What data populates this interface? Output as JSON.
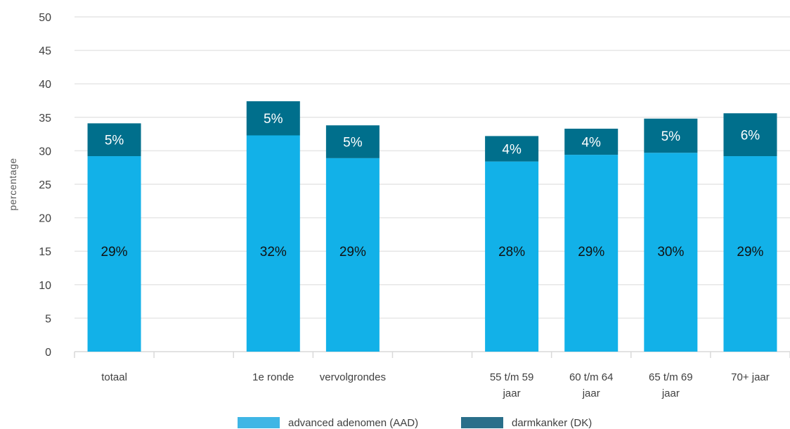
{
  "colors": {
    "aad": "#12B1E8",
    "dk": "#006F8C",
    "aad_legend": "#3FB6E5",
    "dk_legend": "#2A6F8A",
    "grid": "#E6E6E6",
    "axis": "#D9D9D9"
  },
  "chart_data": {
    "type": "bar",
    "stacked": true,
    "ylabel": "percentage",
    "ylim": [
      0,
      50
    ],
    "yticks": [
      "0",
      "5",
      "10",
      "15",
      "20",
      "25",
      "30",
      "35",
      "40",
      "45",
      "50"
    ],
    "grid": true,
    "legend_position": "bottom",
    "categories": [
      [
        "totaal"
      ],
      [],
      [
        "1e ronde"
      ],
      [
        "vervolgrondes"
      ],
      [],
      [
        "55 t/m 59",
        "jaar"
      ],
      [
        "60 t/m 64",
        "jaar"
      ],
      [
        "65 t/m 69",
        "jaar"
      ],
      [
        "70+ jaar"
      ]
    ],
    "series": [
      {
        "name": "advanced adenomen (AAD)",
        "values": [
          29.2,
          null,
          32.3,
          28.9,
          null,
          28.4,
          29.4,
          29.7,
          29.2
        ],
        "labels": [
          "29%",
          "",
          "32%",
          "29%",
          "",
          "28%",
          "29%",
          "30%",
          "29%"
        ]
      },
      {
        "name": "darmkanker (DK)",
        "values": [
          4.9,
          null,
          5.1,
          4.9,
          null,
          3.8,
          3.9,
          5.1,
          6.4
        ],
        "labels": [
          "5%",
          "",
          "5%",
          "5%",
          "",
          "4%",
          "4%",
          "5%",
          "6%"
        ]
      }
    ]
  }
}
